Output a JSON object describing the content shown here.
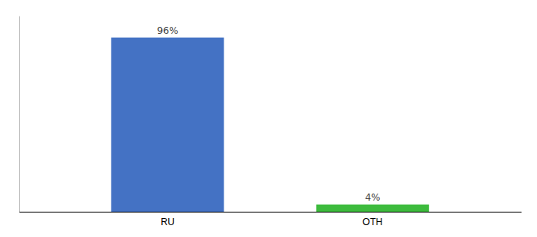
{
  "chart_data": {
    "type": "bar",
    "categories": [
      "RU",
      "OTH"
    ],
    "values": [
      96,
      4
    ],
    "value_labels": [
      "96%",
      "4%"
    ],
    "colors": [
      "#4472c4",
      "#3dbb3d"
    ],
    "ylim": [
      0,
      108
    ],
    "grid": false,
    "data_labels": true,
    "tick_labels": "x"
  }
}
